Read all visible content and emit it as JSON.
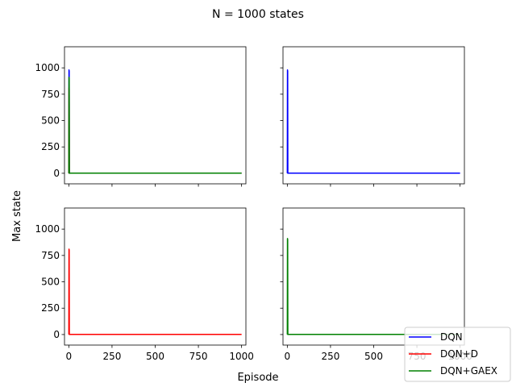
{
  "suptitle": "N = 1000 states",
  "ylabel": "Max state",
  "xlabel": "Episode",
  "legend": {
    "placement": "bottom-right",
    "entries": [
      {
        "label": "DQN",
        "color": "#0000ff"
      },
      {
        "label": "DQN+D",
        "color": "#ff0000"
      },
      {
        "label": "DQN+GAEX",
        "color": "#008000"
      }
    ]
  },
  "chart_data": [
    {
      "type": "line",
      "panel": "top-left",
      "xlim": [
        -25,
        1025
      ],
      "ylim": [
        -100,
        1200
      ],
      "xticks": [
        0,
        250,
        500,
        750,
        1000
      ],
      "yticks": [
        0,
        250,
        500,
        750,
        1000
      ],
      "show_x_tick_labels": false,
      "show_y_tick_labels": true,
      "series": [
        {
          "name": "DQN",
          "color": "#0000ff",
          "x": [
            0,
            1,
            2,
            3,
            4,
            1000
          ],
          "y": [
            0,
            980,
            970,
            0,
            1,
            1
          ]
        },
        {
          "name": "DQN+D",
          "color": "#ff0000",
          "x": [
            0,
            1,
            2,
            3,
            4,
            1000
          ],
          "y": [
            0,
            810,
            800,
            0,
            1,
            1
          ]
        },
        {
          "name": "DQN+GAEX",
          "color": "#008000",
          "x": [
            0,
            1,
            2,
            3,
            4,
            1000
          ],
          "y": [
            0,
            910,
            900,
            0,
            1,
            1
          ]
        }
      ]
    },
    {
      "type": "line",
      "panel": "top-right",
      "xlim": [
        -25,
        1025
      ],
      "ylim": [
        -100,
        1200
      ],
      "xticks": [
        0,
        250,
        500,
        750,
        1000
      ],
      "yticks": [
        0,
        250,
        500,
        750,
        1000
      ],
      "show_x_tick_labels": false,
      "show_y_tick_labels": false,
      "series": [
        {
          "name": "DQN",
          "color": "#0000ff",
          "x": [
            0,
            1,
            2,
            3,
            4,
            1000
          ],
          "y": [
            0,
            980,
            970,
            0,
            1,
            1
          ]
        }
      ]
    },
    {
      "type": "line",
      "panel": "bottom-left",
      "xlim": [
        -25,
        1025
      ],
      "ylim": [
        -100,
        1200
      ],
      "xticks": [
        0,
        250,
        500,
        750,
        1000
      ],
      "yticks": [
        0,
        250,
        500,
        750,
        1000
      ],
      "show_x_tick_labels": true,
      "show_y_tick_labels": true,
      "series": [
        {
          "name": "DQN+D",
          "color": "#ff0000",
          "x": [
            0,
            1,
            2,
            3,
            4,
            1000
          ],
          "y": [
            0,
            810,
            800,
            0,
            1,
            1
          ]
        }
      ]
    },
    {
      "type": "line",
      "panel": "bottom-right",
      "xlim": [
        -25,
        1025
      ],
      "ylim": [
        -100,
        1200
      ],
      "xticks": [
        0,
        250,
        500,
        750,
        1000
      ],
      "yticks": [
        0,
        250,
        500,
        750,
        1000
      ],
      "show_x_tick_labels": true,
      "show_y_tick_labels": false,
      "series": [
        {
          "name": "DQN+GAEX",
          "color": "#008000",
          "x": [
            0,
            1,
            2,
            3,
            4,
            1000
          ],
          "y": [
            0,
            910,
            900,
            0,
            1,
            1
          ]
        }
      ]
    }
  ]
}
